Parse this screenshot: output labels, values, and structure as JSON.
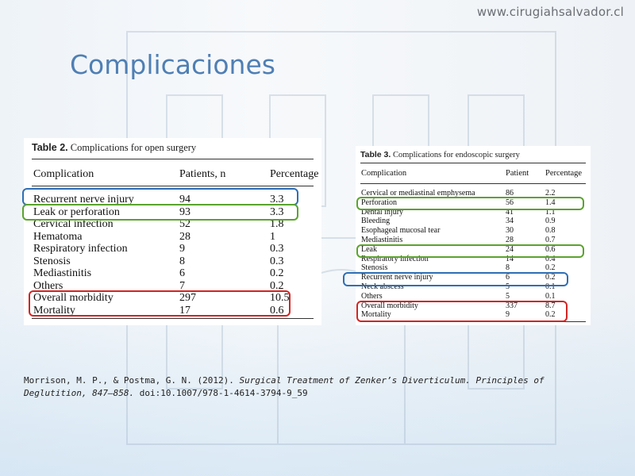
{
  "header": {
    "site_url": "www.cirugiahsalvador.cl",
    "title": "Complicaciones"
  },
  "table2": {
    "caption_bold": "Table 2.",
    "caption_text": "Complications for open surgery",
    "headers": [
      "Complication",
      "Patients, n",
      "Percentage"
    ],
    "rows": [
      [
        "Recurrent nerve injury",
        "94",
        "3.3"
      ],
      [
        "Leak or perforation",
        "93",
        "3.3"
      ],
      [
        "Cervical infection",
        "52",
        "1.8"
      ],
      [
        "Hematoma",
        "28",
        "1"
      ],
      [
        "Respiratory infection",
        "9",
        "0.3"
      ],
      [
        "Stenosis",
        "8",
        "0.3"
      ],
      [
        "Mediastinitis",
        "6",
        "0.2"
      ],
      [
        "Others",
        "7",
        "0.2"
      ],
      [
        "Overall morbidity",
        "297",
        "10.5"
      ],
      [
        "Mortality",
        "17",
        "0.6"
      ]
    ]
  },
  "table3": {
    "caption_bold": "Table 3.",
    "caption_text": "Complications for endoscopic surgery",
    "headers": [
      "Complication",
      "Patient",
      "Percentage"
    ],
    "rows": [
      [
        "Cervical or mediastinal emphysema",
        "86",
        "2.2"
      ],
      [
        "Perforation",
        "56",
        "1.4"
      ],
      [
        "Dental injury",
        "41",
        "1.1"
      ],
      [
        "Bleeding",
        "34",
        "0.9"
      ],
      [
        "Esophageal mucosal tear",
        "30",
        "0.8"
      ],
      [
        "Mediastinitis",
        "28",
        "0.7"
      ],
      [
        "Leak",
        "24",
        "0.6"
      ],
      [
        "Respiratory infection",
        "14",
        "0.4"
      ],
      [
        "Stenosis",
        "8",
        "0.2"
      ],
      [
        "Recurrent nerve injury",
        "6",
        "0.2"
      ],
      [
        "Neck abscess",
        "5",
        "0.1"
      ],
      [
        "Others",
        "5",
        "0.1"
      ],
      [
        "Overall morbidity",
        "337",
        "8.7"
      ],
      [
        "Mortality",
        "9",
        "0.2"
      ]
    ]
  },
  "highlight_colors": {
    "nerve": "#2f6fb5",
    "leak": "#5aa32e",
    "morbidity": "#d22424"
  },
  "citation": {
    "authors": "Morrison, M. P., & Postma, G. N. (2012). ",
    "title_italic": "Surgical Treatment of Zenker’s Diverticulum. Principles of Deglutition, 847–858.",
    "doi": " doi:10.1007/978-1-4614-3794-9_59"
  }
}
